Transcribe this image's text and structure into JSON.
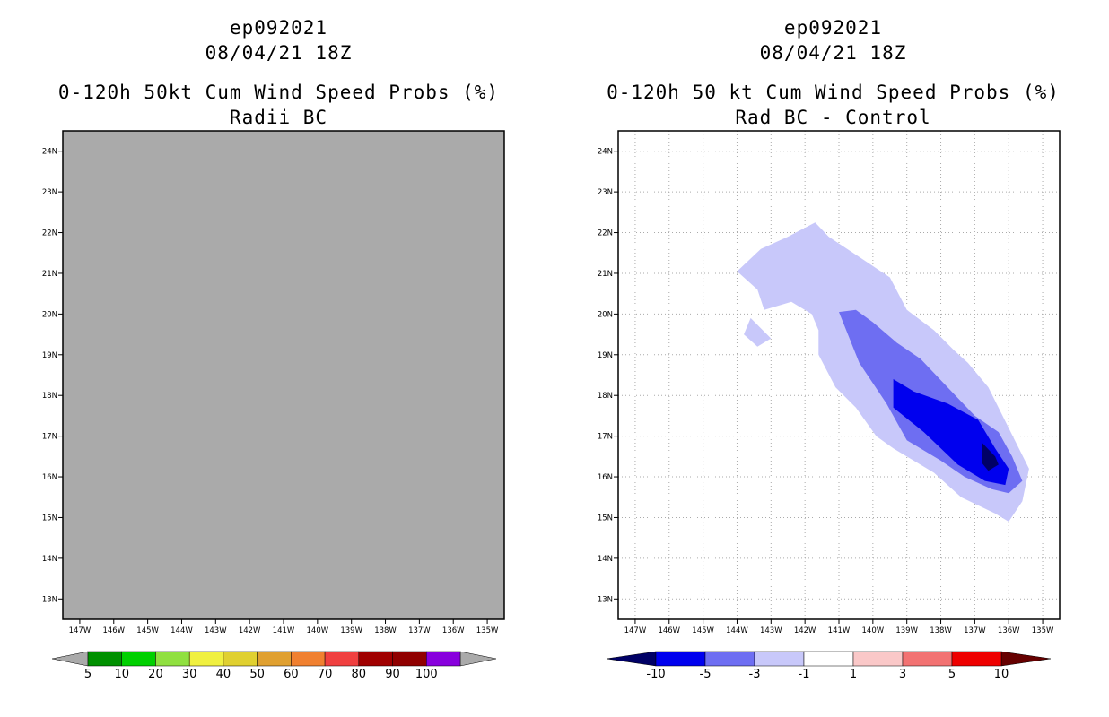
{
  "left_panel": {
    "title_line1": "ep092021",
    "title_line2": "08/04/21 18Z",
    "title_line3": "0-120h 50kt Cum Wind Speed Probs (%)",
    "title_line4": "Radii BC",
    "fill_color": "#aaaaaa"
  },
  "right_panel": {
    "title_line1": "ep092021",
    "title_line2": "08/04/21 18Z",
    "title_line3": "0-120h 50 kt Cum Wind Speed Probs (%)",
    "title_line4": "Rad BC - Control"
  },
  "colors": {
    "neg_10": "#000066",
    "neg_5": "#0000ee",
    "neg_3": "#6e6ef2",
    "neg_1": "#c8c8fa",
    "grid": "#aaaaaa"
  },
  "chart_data": [
    {
      "type": "heatmap",
      "title": "0-120h 50kt Cum Wind Speed Probs (%) — Radii BC",
      "x_ticks": [
        "147W",
        "146W",
        "145W",
        "144W",
        "143W",
        "142W",
        "141W",
        "140W",
        "139W",
        "138W",
        "137W",
        "136W",
        "135W"
      ],
      "y_ticks": [
        "13N",
        "14N",
        "15N",
        "16N",
        "17N",
        "18N",
        "19N",
        "20N",
        "21N",
        "22N",
        "23N",
        "24N"
      ],
      "xlim": [
        -147.5,
        -134.5
      ],
      "ylim": [
        12.5,
        24.5
      ],
      "grid": false,
      "colorbar": {
        "labels": [
          "5",
          "10",
          "20",
          "30",
          "40",
          "50",
          "60",
          "70",
          "80",
          "90",
          "100"
        ],
        "colors": [
          "#009000",
          "#00d000",
          "#90e040",
          "#f0f040",
          "#e0d030",
          "#e0a030",
          "#f08030",
          "#f04040",
          "#a00000",
          "#900000",
          "#8800dd"
        ],
        "under_color": "#aaaaaa",
        "over_color": "#aaaaaa"
      }
    },
    {
      "type": "heatmap",
      "title": "0-120h 50 kt Cum Wind Speed Probs (%) — Rad BC - Control",
      "x_ticks": [
        "147W",
        "146W",
        "145W",
        "144W",
        "143W",
        "142W",
        "141W",
        "140W",
        "139W",
        "138W",
        "137W",
        "136W",
        "135W"
      ],
      "y_ticks": [
        "13N",
        "14N",
        "15N",
        "16N",
        "17N",
        "18N",
        "19N",
        "20N",
        "21N",
        "22N",
        "23N",
        "24N"
      ],
      "xlim": [
        -147.5,
        -134.5
      ],
      "ylim": [
        12.5,
        24.5
      ],
      "grid": true,
      "colorbar": {
        "labels": [
          "-10",
          "-5",
          "-3",
          "-1",
          "1",
          "3",
          "5",
          "10"
        ],
        "colors": [
          "#0000ee",
          "#6e6ef2",
          "#c8c8fa",
          "#ffffff",
          "#fac8c8",
          "#f27272",
          "#ee0000"
        ],
        "under_color": "#000066",
        "over_color": "#660000"
      },
      "contour_levels": [
        {
          "level": "-1 to -3",
          "polygon_lonlat": [
            [
              -144,
              21.05
            ],
            [
              -143.3,
              21.6
            ],
            [
              -142.5,
              21.9
            ],
            [
              -141.7,
              22.25
            ],
            [
              -141.3,
              21.9
            ],
            [
              -140.4,
              21.4
            ],
            [
              -139.5,
              20.9
            ],
            [
              -139,
              20.1
            ],
            [
              -138.2,
              19.6
            ],
            [
              -137.6,
              19.1
            ],
            [
              -137.2,
              18.8
            ],
            [
              -136.6,
              18.2
            ],
            [
              -136,
              17.2
            ],
            [
              -135.4,
              16.2
            ],
            [
              -135.6,
              15.4
            ],
            [
              -136,
              14.9
            ],
            [
              -136.4,
              15.1
            ],
            [
              -137.4,
              15.5
            ],
            [
              -138.2,
              16.1
            ],
            [
              -139.4,
              16.7
            ],
            [
              -139.9,
              17
            ],
            [
              -140.5,
              17.7
            ],
            [
              -141.1,
              18.2
            ],
            [
              -141.6,
              19
            ],
            [
              -141.6,
              19.6
            ],
            [
              -141.8,
              20
            ],
            [
              -142.4,
              20.3
            ],
            [
              -143.2,
              20.1
            ],
            [
              -143.4,
              20.6
            ],
            [
              -144,
              21.05
            ]
          ]
        },
        {
          "level": "-1 to -3",
          "polygon_lonlat": [
            [
              -143.6,
              19.9
            ],
            [
              -143,
              19.4
            ],
            [
              -143.4,
              19.2
            ],
            [
              -143.8,
              19.5
            ],
            [
              -143.6,
              19.9
            ]
          ]
        },
        {
          "level": "-3 to -5",
          "polygon_lonlat": [
            [
              -141,
              20.05
            ],
            [
              -140.5,
              20.1
            ],
            [
              -140,
              19.8
            ],
            [
              -139.3,
              19.3
            ],
            [
              -138.6,
              18.9
            ],
            [
              -137.8,
              18.2
            ],
            [
              -137,
              17.5
            ],
            [
              -136.3,
              17.1
            ],
            [
              -135.9,
              16.5
            ],
            [
              -135.6,
              15.9
            ],
            [
              -136,
              15.6
            ],
            [
              -136.5,
              15.7
            ],
            [
              -137.3,
              16
            ],
            [
              -138,
              16.4
            ],
            [
              -139,
              16.9
            ],
            [
              -139.6,
              17.8
            ],
            [
              -140.4,
              18.8
            ],
            [
              -141,
              20.05
            ]
          ]
        },
        {
          "level": "-5 to -10",
          "polygon_lonlat": [
            [
              -139.4,
              18.4
            ],
            [
              -138.8,
              18.1
            ],
            [
              -137.8,
              17.8
            ],
            [
              -136.9,
              17.4
            ],
            [
              -136.4,
              16.7
            ],
            [
              -136,
              16.2
            ],
            [
              -136.1,
              15.8
            ],
            [
              -136.7,
              15.9
            ],
            [
              -137.5,
              16.3
            ],
            [
              -138.5,
              17.1
            ],
            [
              -139.4,
              17.7
            ],
            [
              -139.4,
              18.4
            ]
          ]
        },
        {
          "level": "below -10",
          "polygon_lonlat": [
            [
              -136.8,
              16.85
            ],
            [
              -136.4,
              16.5
            ],
            [
              -136.3,
              16.3
            ],
            [
              -136.6,
              16.15
            ],
            [
              -136.8,
              16.35
            ],
            [
              -136.8,
              16.85
            ]
          ]
        }
      ]
    }
  ]
}
